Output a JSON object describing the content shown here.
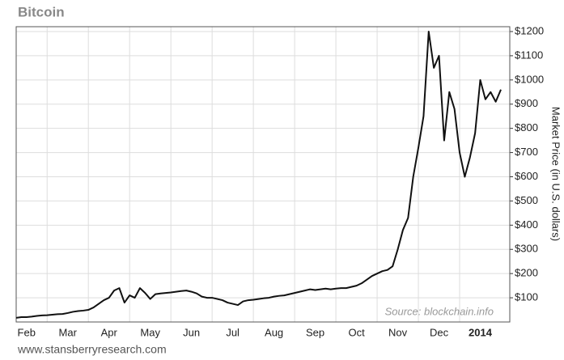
{
  "chart_data": {
    "type": "line",
    "title": "Bitcoin",
    "y_axis_label": "Market Price (in U.S. dollars)",
    "annotation": "Source: blockchain.info",
    "footer": "www.stansberryresearch.com",
    "color": "#111111",
    "grid": true,
    "ylim": [
      0,
      1220
    ],
    "yticks": [
      {
        "value": 100,
        "label": "$100"
      },
      {
        "value": 200,
        "label": "$200"
      },
      {
        "value": 300,
        "label": "$300"
      },
      {
        "value": 400,
        "label": "$400"
      },
      {
        "value": 500,
        "label": "$500"
      },
      {
        "value": 600,
        "label": "$600"
      },
      {
        "value": 700,
        "label": "$700"
      },
      {
        "value": 800,
        "label": "$800"
      },
      {
        "value": 900,
        "label": "$900"
      },
      {
        "value": 1000,
        "label": "$1000"
      },
      {
        "value": 1100,
        "label": "$1100"
      },
      {
        "value": 1200,
        "label": "$1200"
      }
    ],
    "categories": [
      null,
      null,
      "Feb",
      null,
      null,
      null,
      null,
      null,
      null,
      null,
      "Mar",
      null,
      null,
      null,
      null,
      null,
      null,
      null,
      "Apr",
      null,
      null,
      null,
      null,
      null,
      null,
      null,
      "May",
      null,
      null,
      null,
      null,
      null,
      null,
      null,
      "Jun",
      null,
      null,
      null,
      null,
      null,
      null,
      null,
      "Jul",
      null,
      null,
      null,
      null,
      null,
      null,
      null,
      "Aug",
      null,
      null,
      null,
      null,
      null,
      null,
      null,
      "Sep",
      null,
      null,
      null,
      null,
      null,
      null,
      null,
      "Oct",
      null,
      null,
      null,
      null,
      null,
      null,
      null,
      "Nov",
      null,
      null,
      null,
      null,
      null,
      null,
      null,
      "Dec",
      null,
      null,
      null,
      null,
      null,
      null,
      null,
      "2014",
      null,
      null,
      null,
      null
    ],
    "values": [
      17,
      20,
      20,
      22,
      25,
      27,
      28,
      30,
      32,
      33,
      37,
      42,
      45,
      47,
      50,
      60,
      75,
      90,
      100,
      130,
      140,
      80,
      110,
      100,
      140,
      120,
      95,
      115,
      118,
      120,
      122,
      125,
      128,
      130,
      125,
      118,
      105,
      100,
      100,
      95,
      90,
      80,
      75,
      70,
      85,
      90,
      92,
      95,
      98,
      100,
      105,
      108,
      110,
      115,
      120,
      125,
      130,
      135,
      132,
      135,
      138,
      135,
      138,
      140,
      140,
      145,
      150,
      160,
      175,
      190,
      200,
      210,
      215,
      230,
      300,
      380,
      430,
      600,
      720,
      850,
      1200,
      1050,
      1100,
      750,
      950,
      880,
      700,
      600,
      680,
      780,
      1000,
      920,
      950,
      910,
      960
    ]
  }
}
